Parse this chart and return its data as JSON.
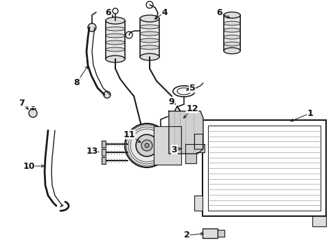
{
  "bg_color": "#ffffff",
  "lc": "#1a1a1a",
  "lc2": "#555555",
  "figsize": [
    4.89,
    3.6
  ],
  "dpi": 100,
  "label_fs": 9,
  "label_fw": "bold",
  "label_color": "#111111"
}
